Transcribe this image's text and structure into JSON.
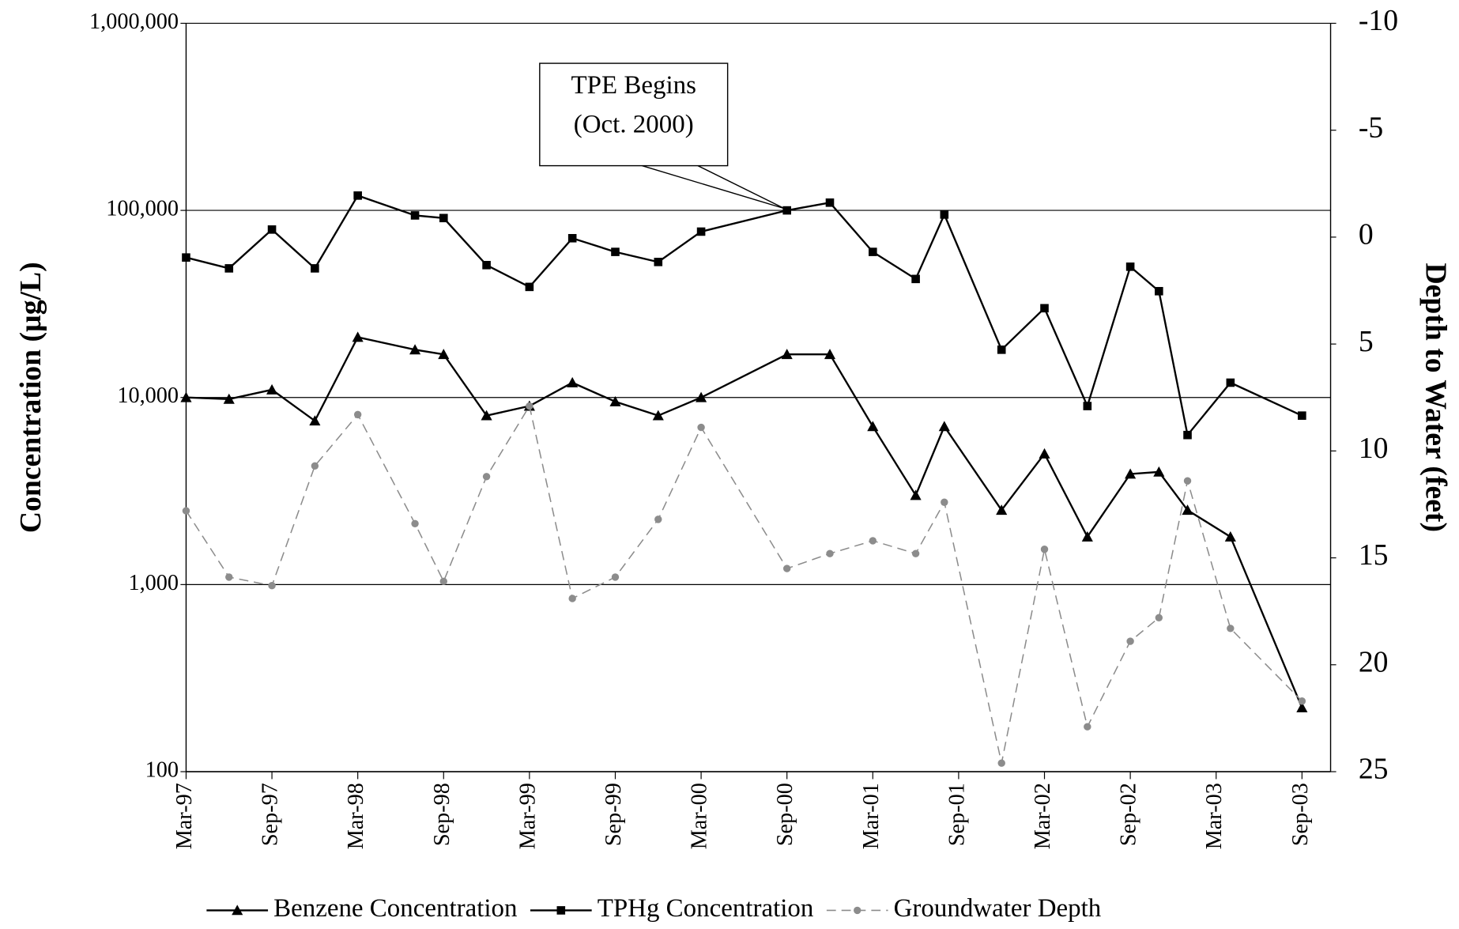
{
  "chart_data": {
    "type": "line",
    "x": [
      "Mar-97",
      "Jun-97",
      "Sep-97",
      "Dec-97",
      "Mar-98",
      "Jul-98",
      "Sep-98",
      "Dec-98",
      "Mar-99",
      "Jun-99",
      "Sep-99",
      "Dec-99",
      "Mar-00",
      "Sep-00",
      "Dec-00",
      "Mar-01",
      "Jun-01",
      "Aug-01",
      "Dec-01",
      "Mar-02",
      "Jun-02",
      "Sep-02",
      "Nov-02",
      "Jan-03",
      "Apr-03",
      "Sep-03"
    ],
    "xlim": [
      "Mar-97",
      "Nov-03"
    ],
    "xticks": [
      "Mar-97",
      "Sep-97",
      "Mar-98",
      "Sep-98",
      "Mar-99",
      "Sep-99",
      "Mar-00",
      "Sep-00",
      "Mar-01",
      "Sep-01",
      "Mar-02",
      "Sep-02",
      "Mar-03",
      "Sep-03"
    ],
    "ylabel": "Concentration (µg/L)",
    "y2label": "Depth to Water (feet)",
    "ylog": true,
    "ylim": [
      100,
      1000000
    ],
    "yticks": [
      {
        "value": 100,
        "label": "100"
      },
      {
        "value": 1000,
        "label": "1,000"
      },
      {
        "value": 10000,
        "label": "10,000"
      },
      {
        "value": 100000,
        "label": "100,000"
      },
      {
        "value": 1000000,
        "label": "1,000,000"
      }
    ],
    "y2lim": [
      25,
      -10
    ],
    "y2ticks": [
      -10,
      -5,
      0,
      5,
      10,
      15,
      20,
      25
    ],
    "grid": true,
    "legend": "bottom",
    "annotation": {
      "text": [
        "TPE Begins",
        "(Oct. 2000)"
      ]
    },
    "series": [
      {
        "name": "Benzene Concentration",
        "color": "#000000",
        "marker": "triangle",
        "dash": false,
        "values": [
          10000,
          9800,
          11000,
          7500,
          21000,
          18000,
          17000,
          8000,
          9000,
          12000,
          9500,
          8000,
          10000,
          17000,
          17000,
          7000,
          3000,
          7000,
          2500,
          5000,
          1800,
          3900,
          4000,
          2500,
          1800,
          220
        ]
      },
      {
        "name": "TPHg Concentration",
        "color": "#000000",
        "marker": "square",
        "dash": false,
        "values": [
          56000,
          49000,
          79000,
          49000,
          120000,
          94000,
          91000,
          51000,
          39000,
          71000,
          60000,
          53000,
          77000,
          100000,
          110000,
          60000,
          43000,
          95000,
          18000,
          30000,
          9000,
          50000,
          37000,
          6300,
          12000,
          8000
        ]
      },
      {
        "name": "Groundwater Depth",
        "color": "#8c8c8c",
        "marker": "circle",
        "dash": true,
        "axis": "y2",
        "values": [
          12.8,
          15.9,
          16.3,
          10.7,
          8.3,
          13.4,
          16.1,
          11.2,
          7.9,
          16.9,
          15.9,
          13.2,
          8.9,
          15.5,
          14.8,
          14.2,
          14.8,
          12.4,
          24.6,
          14.6,
          22.9,
          18.9,
          17.8,
          11.4,
          18.3,
          21.7
        ]
      }
    ]
  }
}
